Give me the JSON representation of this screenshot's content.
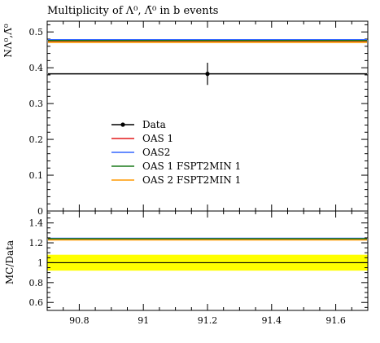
{
  "title": "Multiplicity of Λ⁰, Λ̄⁰ in b events",
  "ylabel_top": "NΛ⁰,Λ̄⁰",
  "ylabel_bottom": "MC/Data",
  "chart_data": [
    {
      "type": "line",
      "panel": "main",
      "title": "Multiplicity of Λ⁰, Λ̄⁰ in b events",
      "xlim": [
        90.7,
        91.7
      ],
      "ylim": [
        0,
        0.53
      ],
      "yticks": [
        0,
        0.1,
        0.2,
        0.3,
        0.4,
        0.5
      ],
      "ytick_labels": [
        "0",
        "0.1",
        "0.2",
        "0.3",
        "0.4",
        "0.5"
      ],
      "grid": false,
      "legend_position": "center-left",
      "data": {
        "name": "Data",
        "x": 91.2,
        "y": 0.383,
        "yerr": 0.031,
        "color": "#000000"
      },
      "series": [
        {
          "name": "OAS 1",
          "y": 0.474,
          "color": "#e41a1c"
        },
        {
          "name": "OAS2",
          "y": 0.478,
          "color": "#3366ff"
        },
        {
          "name": "OAS 1 FSPT2MIN 1",
          "y": 0.476,
          "color": "#1a7a1a"
        },
        {
          "name": "OAS 2 FSPT2MIN 1",
          "y": 0.471,
          "color": "#ff9900"
        }
      ]
    },
    {
      "type": "line",
      "panel": "ratio",
      "xlim": [
        90.7,
        91.7
      ],
      "ylim": [
        0.52,
        1.52
      ],
      "xticks": [
        90.8,
        91,
        91.2,
        91.4,
        91.6
      ],
      "xtick_labels": [
        "90.8",
        "91",
        "91.2",
        "91.4",
        "91.6"
      ],
      "yticks": [
        0.6,
        0.8,
        1,
        1.2,
        1.4
      ],
      "ytick_labels": [
        "0.6",
        "0.8",
        "1",
        "1.2",
        "1.4"
      ],
      "band": {
        "lower": 0.92,
        "upper": 1.08,
        "color": "#ffff00"
      },
      "reference": 1,
      "series": [
        {
          "name": "OAS 1",
          "y": 1.236,
          "color": "#e41a1c"
        },
        {
          "name": "OAS2",
          "y": 1.245,
          "color": "#3366ff"
        },
        {
          "name": "OAS 1 FSPT2MIN 1",
          "y": 1.241,
          "color": "#1a7a1a"
        },
        {
          "name": "OAS 2 FSPT2MIN 1",
          "y": 1.229,
          "color": "#ff9900"
        }
      ]
    }
  ]
}
